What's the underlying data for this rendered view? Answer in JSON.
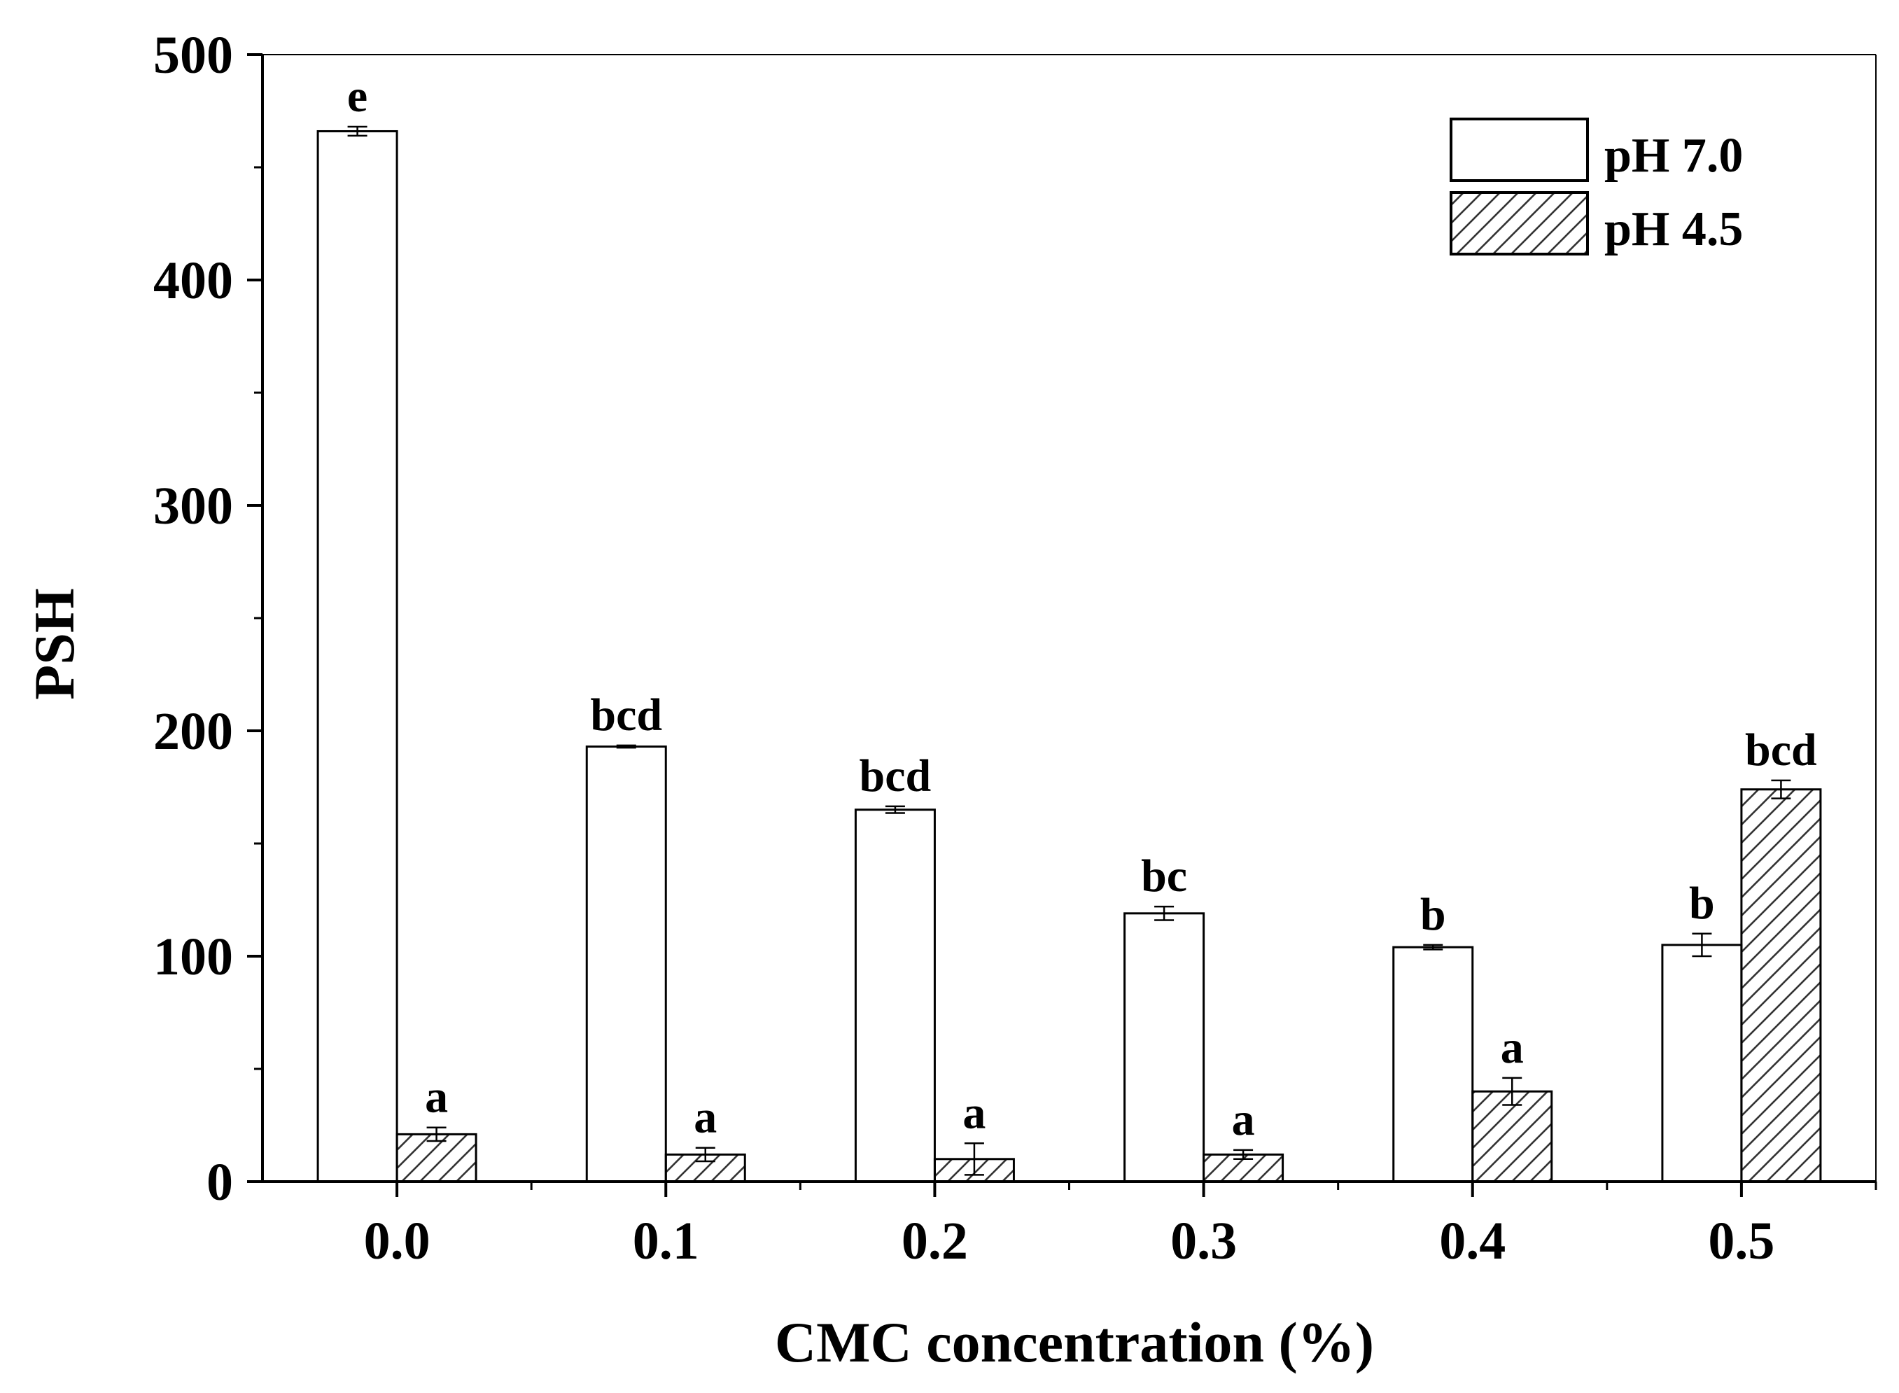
{
  "chart_data": {
    "type": "bar",
    "title": "",
    "xlabel": "CMC concentration (%)",
    "ylabel": "PSH",
    "categories": [
      "0.0",
      "0.1",
      "0.2",
      "0.3",
      "0.4",
      "0.5"
    ],
    "ylim": [
      0,
      500
    ],
    "yticks": [
      "0",
      "100",
      "200",
      "300",
      "400",
      "500"
    ],
    "grid": false,
    "legend_position": "top-right",
    "series": [
      {
        "name": "pH 7.0",
        "pattern": "open",
        "values": [
          466,
          193,
          165,
          119,
          104,
          105
        ],
        "errors": [
          2,
          0.5,
          1.5,
          3,
          1,
          5
        ],
        "letters": [
          "e",
          "bcd",
          "bcd",
          "bc",
          "b",
          "b"
        ]
      },
      {
        "name": "pH 4.5",
        "pattern": "hatched",
        "values": [
          21,
          12,
          10,
          12,
          40,
          174
        ],
        "errors": [
          3,
          3,
          7,
          2,
          6,
          4
        ],
        "letters": [
          "a",
          "a",
          "a",
          "a",
          "a",
          "bcd"
        ]
      }
    ]
  },
  "colors": {
    "axis": "#000000",
    "bar_fill": "#ffffff",
    "hatch": "#333333"
  }
}
